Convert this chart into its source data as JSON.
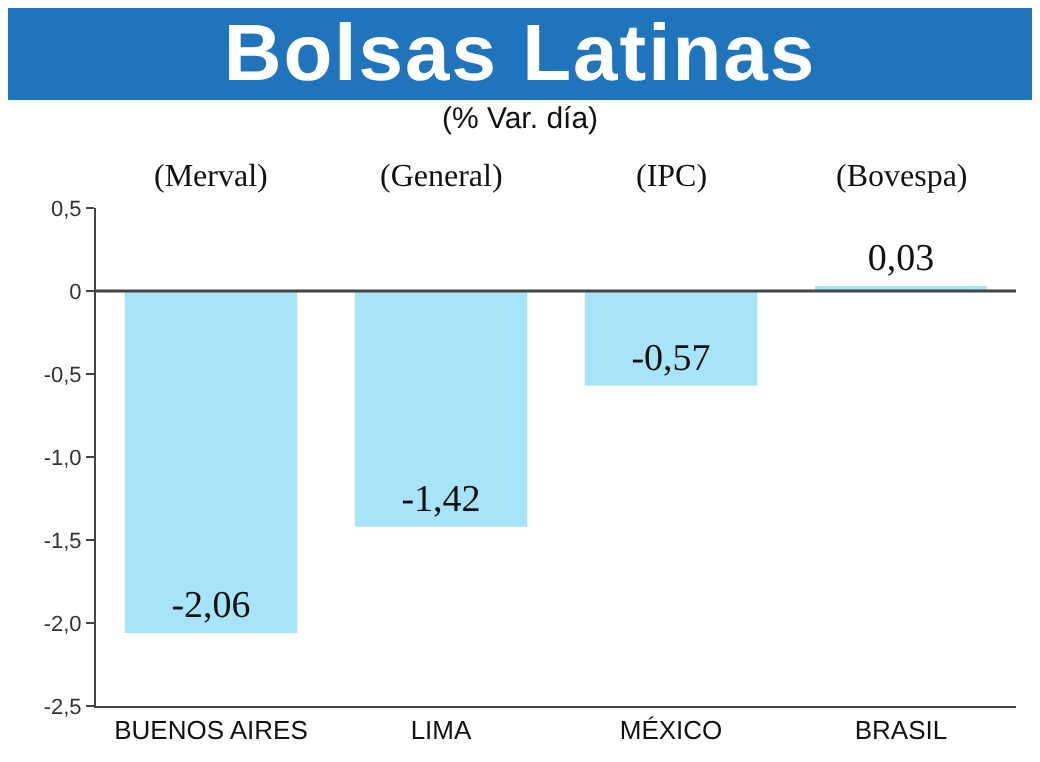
{
  "chart_data": {
    "type": "bar",
    "title": "Bolsas Latinas",
    "subtitle": "(% Var. día)",
    "categories": [
      "BUENOS AIRES",
      "LIMA",
      "MÉXICO",
      "BRASIL"
    ],
    "values": [
      -2.06,
      -1.42,
      -0.57,
      0.03
    ],
    "value_labels": [
      "-2,06",
      "-1,42",
      "-0,57",
      "0,03"
    ],
    "color": "#a8e4f8",
    "ylim": [
      -2.5,
      0.5
    ],
    "yticks": [
      {
        "value": 0.5,
        "label": "0,5"
      },
      0,
      {
        "value": -0.5,
        "label": "-0,5"
      },
      {
        "value": -1,
        "label": "-1,0"
      },
      {
        "value": -1.5,
        "label": "-1,5"
      },
      {
        "value": -2,
        "label": "-2,0"
      },
      {
        "value": -2.5,
        "label": "-2,5"
      }
    ],
    "annotations": [
      "(Merval)",
      "(General)",
      "(IPC)",
      "(Bovespa)"
    ],
    "ref_lines": [
      {
        "axis": "y",
        "value": 0,
        "color": "#444444"
      }
    ],
    "legend": false
  }
}
